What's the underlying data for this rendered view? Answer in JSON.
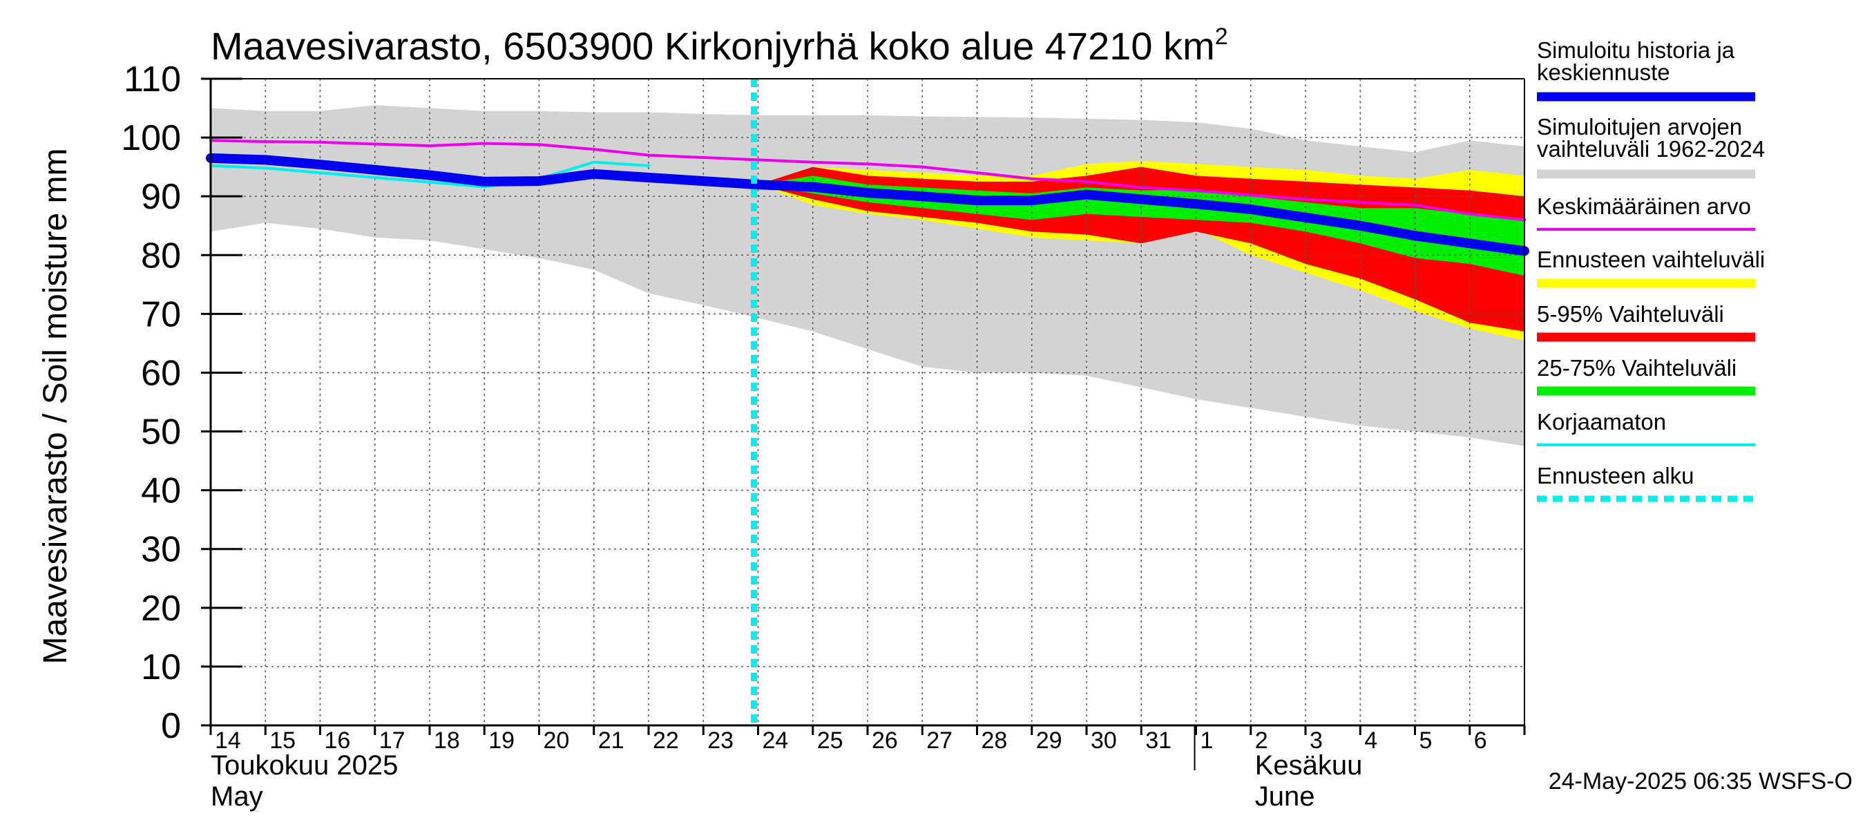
{
  "chart_data": {
    "type": "area",
    "title_main": "Maavesivarasto, 6503900 Kirkonjyrhä koko alue 47210 km",
    "title_sup": "2",
    "ylabel": "Maavesivarasto / Soil moisture   mm",
    "ylim": [
      0,
      110
    ],
    "yticks": [
      0,
      10,
      20,
      30,
      40,
      50,
      60,
      70,
      80,
      90,
      100,
      110
    ],
    "x_days": [
      "14",
      "15",
      "16",
      "17",
      "18",
      "19",
      "20",
      "21",
      "22",
      "23",
      "24",
      "25",
      "26",
      "27",
      "28",
      "29",
      "30",
      "31",
      "1",
      "2",
      "3",
      "4",
      "5",
      "6"
    ],
    "x_range": [
      0,
      24
    ],
    "months": [
      {
        "fi": "Toukokuu  2025",
        "en": "May"
      },
      {
        "fi": "Kesäkuu",
        "en": "June"
      }
    ],
    "forecast_start": 10,
    "x": [
      0,
      1,
      2,
      3,
      4,
      5,
      6,
      7,
      8,
      9,
      10,
      11,
      12,
      13,
      14,
      15,
      16,
      17,
      18,
      19,
      20,
      21,
      22,
      23,
      24
    ],
    "series": [
      {
        "name": "Simuloitujen arvojen vaihteluväli 1962-2024 (max)",
        "color": "#d3d3d3",
        "values": [
          105,
          104.5,
          104.5,
          105.5,
          105,
          104.5,
          104.5,
          104.3,
          104.3,
          104,
          103.8,
          103.8,
          103.8,
          103.6,
          103.5,
          103.4,
          103.2,
          103,
          102.6,
          101.5,
          99.5,
          98.5,
          97.5,
          99.5,
          98.5
        ]
      },
      {
        "name": "Simuloitujen arvojen vaihteluväli 1962-2024 (min)",
        "color": "#d3d3d3",
        "values": [
          84,
          85.5,
          84.5,
          83,
          82.5,
          81,
          79.5,
          77.5,
          73.5,
          71.5,
          69.3,
          67,
          64,
          61,
          60,
          60,
          59.5,
          57.5,
          55.5,
          54,
          52.5,
          51,
          50,
          49,
          47.5
        ]
      },
      {
        "name": "Ennusteen vaihteluväli (max)",
        "color": "#ffff00",
        "values": [
          null,
          null,
          null,
          null,
          null,
          null,
          null,
          null,
          null,
          null,
          92,
          95,
          94.5,
          94,
          93.5,
          93.5,
          95.5,
          96,
          95.5,
          95,
          94.5,
          93.5,
          93,
          94.5,
          93.5
        ]
      },
      {
        "name": "Ennusteen vaihteluväli (min)",
        "color": "#ffff00",
        "values": [
          null,
          null,
          null,
          null,
          null,
          null,
          null,
          null,
          null,
          null,
          92,
          88.5,
          87,
          86,
          84.5,
          83,
          82.5,
          82,
          84.5,
          80,
          77,
          74,
          70.5,
          67.5,
          65.5
        ]
      },
      {
        "name": "5-95% Vaihteluväli (max)",
        "color": "#ff0000",
        "values": [
          null,
          null,
          null,
          null,
          null,
          null,
          null,
          null,
          null,
          null,
          92,
          95,
          93.5,
          93,
          92.5,
          92.5,
          93.5,
          95,
          93.5,
          93,
          92.5,
          92,
          91.5,
          91,
          90
        ]
      },
      {
        "name": "5-95% Vaihteluväli (min)",
        "color": "#ff0000",
        "values": [
          null,
          null,
          null,
          null,
          null,
          null,
          null,
          null,
          null,
          null,
          92,
          89.5,
          87.5,
          86.5,
          85.5,
          84,
          83.5,
          82,
          84,
          82,
          78.5,
          76,
          72.5,
          68.5,
          67
        ]
      },
      {
        "name": "25-75% Vaihteluväli (max)",
        "color": "#00ee00",
        "values": [
          null,
          null,
          null,
          null,
          null,
          null,
          null,
          null,
          null,
          null,
          92,
          93.5,
          92,
          91.5,
          91,
          90.5,
          91.5,
          91,
          91.2,
          90,
          89,
          88,
          88,
          87,
          86
        ]
      },
      {
        "name": "25-75% Vaihteluväli (min)",
        "color": "#00ee00",
        "values": [
          null,
          null,
          null,
          null,
          null,
          null,
          null,
          null,
          null,
          null,
          92,
          90.5,
          89,
          88,
          87,
          86,
          87,
          86.5,
          86,
          85.5,
          84,
          82,
          79.5,
          78.5,
          76.5
        ]
      },
      {
        "name": "Keskimääräinen arvo",
        "color": "#ee00ee",
        "values": [
          99.5,
          99.3,
          99.2,
          98.9,
          98.6,
          99,
          98.8,
          98,
          97,
          96.6,
          96.2,
          95.8,
          95.5,
          95,
          94,
          93,
          92.5,
          91.5,
          91,
          90.2,
          89.5,
          89,
          88.5,
          87,
          86
        ]
      },
      {
        "name": "Korjaamaton",
        "color": "#00eeee",
        "values": [
          95.2,
          94.8,
          94,
          93.2,
          92.4,
          91.6,
          93,
          95.8,
          95.2,
          null,
          null,
          null,
          null,
          null,
          null,
          null,
          null,
          null,
          null,
          null,
          null,
          null,
          null,
          null,
          null
        ]
      },
      {
        "name": "Simuloitu historia ja keskiennuste",
        "color": "#0000ee",
        "values": [
          96.5,
          96.2,
          95.4,
          94.5,
          93.6,
          92.5,
          92.6,
          93.8,
          93.2,
          92.6,
          92,
          91.6,
          90.6,
          90,
          89.3,
          89.3,
          90.3,
          89.5,
          88.7,
          87.8,
          86.4,
          85,
          83.3,
          82,
          80.7
        ]
      }
    ],
    "legend": [
      {
        "label1": "Simuloitu historia ja",
        "label2": "keskiennuste",
        "color": "#0000ee",
        "style": "solid"
      },
      {
        "label1": "Simuloitujen arvojen",
        "label2": "vaihteluväli 1962-2024",
        "color": "#d3d3d3",
        "style": "solid"
      },
      {
        "label1": "Keskimääräinen arvo",
        "label2": "",
        "color": "#ee00ee",
        "style": "thin"
      },
      {
        "label1": "Ennusteen vaihteluväli",
        "label2": "",
        "color": "#ffff00",
        "style": "solid"
      },
      {
        "label1": "5-95% Vaihteluväli",
        "label2": "",
        "color": "#ff0000",
        "style": "solid"
      },
      {
        "label1": "25-75% Vaihteluväli",
        "label2": "",
        "color": "#00ee00",
        "style": "solid"
      },
      {
        "label1": "Korjaamaton",
        "label2": "",
        "color": "#00eeee",
        "style": "thin"
      },
      {
        "label1": "Ennusteen alku",
        "label2": "",
        "color": "#00eeee",
        "style": "dashed"
      }
    ],
    "timestamp": "24-May-2025 06:35 WSFS-O"
  }
}
